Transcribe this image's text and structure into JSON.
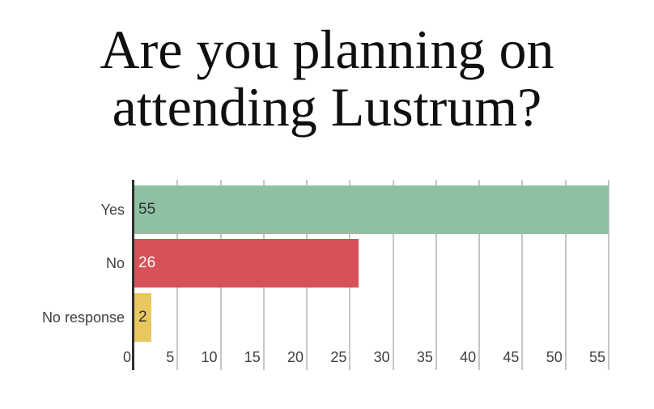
{
  "title": "Are you planning on attending Lustrum?",
  "chart_data": {
    "type": "bar",
    "orientation": "horizontal",
    "title": "Are you planning on attending Lustrum?",
    "categories": [
      "Yes",
      "No",
      "No response"
    ],
    "values": [
      55,
      26,
      2
    ],
    "value_labels": [
      "55",
      "26",
      "2"
    ],
    "bar_colors": [
      "#8dc1a2",
      "#d65158",
      "#e9c75f"
    ],
    "value_label_colors": [
      "#2f3032",
      "#ffffff",
      "#2f3032"
    ],
    "xlim": [
      0,
      55
    ],
    "x_ticks": [
      0,
      5,
      10,
      15,
      20,
      25,
      30,
      35,
      40,
      45,
      50,
      55
    ],
    "grid": "vertical",
    "legend": "none"
  },
  "colors": {
    "background": "#ffffff",
    "axis_line": "#2f2f2f",
    "gridline": "#c6c6c6",
    "tick_text": "#3e4043",
    "category_text": "#3e4043",
    "title_text": "#101010"
  }
}
